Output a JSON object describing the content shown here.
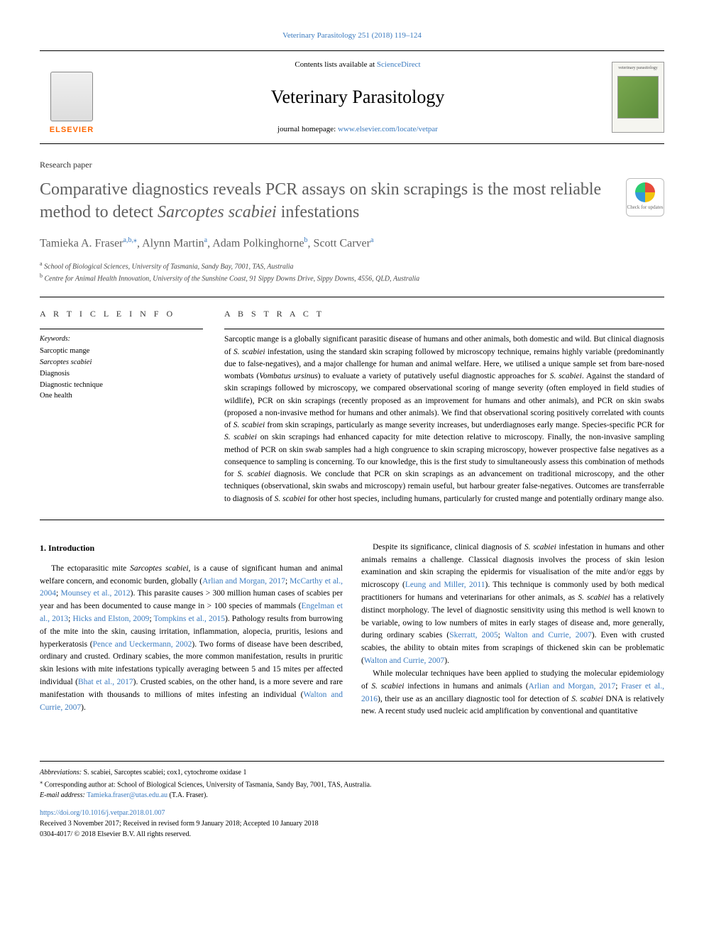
{
  "journal_ref": {
    "text": "Veterinary Parasitology 251 (2018) 119–124",
    "url": "#"
  },
  "masthead": {
    "contents_label": "Contents lists available at ",
    "contents_link": "ScienceDirect",
    "journal_title": "Veterinary Parasitology",
    "homepage_label": "journal homepage: ",
    "homepage_link": "www.elsevier.com/locate/vetpar",
    "elsevier_text": "ELSEVIER",
    "cover_title": "veterinary parasitology"
  },
  "article": {
    "type": "Research paper",
    "title_pre": "Comparative diagnostics reveals PCR assays on skin scrapings is the most reliable method to detect ",
    "title_italic": "Sarcoptes scabiei",
    "title_post": " infestations",
    "crossmark_label": "Check for updates"
  },
  "authors": {
    "a1_name": "Tamieka A. Fraser",
    "a1_aff": "a,b,",
    "a1_corr": "⁎",
    "a2_name": "Alynn Martin",
    "a2_aff": "a",
    "a3_name": "Adam Polkinghorne",
    "a3_aff": "b",
    "a4_name": "Scott Carver",
    "a4_aff": "a"
  },
  "affiliations": {
    "a": "a School of Biological Sciences, University of Tasmania, Sandy Bay, 7001, TAS, Australia",
    "b": "b Centre for Animal Health Innovation, University of the Sunshine Coast, 91 Sippy Downs Drive, Sippy Downs, 4556, QLD, Australia"
  },
  "info": {
    "heading": "A R T I C L E  I N F O",
    "keywords_label": "Keywords:",
    "keywords": [
      "Sarcoptic mange",
      "Sarcoptes scabiei",
      "Diagnosis",
      "Diagnostic technique",
      "One health"
    ]
  },
  "abstract": {
    "heading": "A B S T R A C T",
    "text": "Sarcoptic mange is a globally significant parasitic disease of humans and other animals, both domestic and wild. But clinical diagnosis of S. scabiei infestation, using the standard skin scraping followed by microscopy technique, remains highly variable (predominantly due to false-negatives), and a major challenge for human and animal welfare. Here, we utilised a unique sample set from bare-nosed wombats (Vombatus ursinus) to evaluate a variety of putatively useful diagnostic approaches for S. scabiei. Against the standard of skin scrapings followed by microscopy, we compared observational scoring of mange severity (often employed in field studies of wildlife), PCR on skin scrapings (recently proposed as an improvement for humans and other animals), and PCR on skin swabs (proposed a non-invasive method for humans and other animals). We find that observational scoring positively correlated with counts of S. scabiei from skin scrapings, particularly as mange severity increases, but underdiagnoses early mange. Species-specific PCR for S. scabiei on skin scrapings had enhanced capacity for mite detection relative to microscopy. Finally, the non-invasive sampling method of PCR on skin swab samples had a high congruence to skin scraping microscopy, however prospective false negatives as a consequence to sampling is concerning. To our knowledge, this is the first study to simultaneously assess this combination of methods for S. scabiei diagnosis. We conclude that PCR on skin scrapings as an advancement on traditional microscopy, and the other techniques (observational, skin swabs and microscopy) remain useful, but harbour greater false-negatives. Outcomes are transferrable to diagnosis of S. scabiei for other host species, including humans, particularly for crusted mange and potentially ordinary mange also."
  },
  "body": {
    "intro_heading": "1. Introduction",
    "p1": "The ectoparasitic mite Sarcoptes scabiei, is a cause of significant human and animal welfare concern, and economic burden, globally (Arlian and Morgan, 2017; McCarthy et al., 2004; Mounsey et al., 2012). This parasite causes > 300 million human cases of scabies per year and has been documented to cause mange in > 100 species of mammals (Engelman et al., 2013; Hicks and Elston, 2009; Tompkins et al., 2015). Pathology results from burrowing of the mite into the skin, causing irritation, inflammation, alopecia, pruritis, lesions and hyperkeratosis (Pence and Ueckermann, 2002). Two forms of disease have been described, ordinary and crusted. Ordinary scabies, the more common manifestation, results in pruritic skin lesions with mite infestations typically averaging between 5 and 15 mites per affected individual (Bhat et al., 2017). Crusted scabies, on the other hand, is a more severe and rare manifestation with thousands to millions of mites infesting an individual (Walton and Currie, 2007).",
    "p2": "Despite its significance, clinical diagnosis of S. scabiei infestation in humans and other animals remains a challenge. Classical diagnosis involves the process of skin lesion examination and skin scraping the epidermis for visualisation of the mite and/or eggs by microscopy (Leung and Miller, 2011). This technique is commonly used by both medical practitioners for humans and veterinarians for other animals, as S. scabiei has a relatively distinct morphology. The level of diagnostic sensitivity using this method is well known to be variable, owing to low numbers of mites in early stages of disease and, more generally, during ordinary scabies (Skerratt, 2005; Walton and Currie, 2007). Even with crusted scabies, the ability to obtain mites from scrapings of thickened skin can be problematic (Walton and Currie, 2007).",
    "p3": "While molecular techniques have been applied to studying the molecular epidemiology of S. scabiei infections in humans and animals (Arlian and Morgan, 2017; Fraser et al., 2016), their use as an ancillary diagnostic tool for detection of S. scabiei DNA is relatively new. A recent study used nucleic acid amplification by conventional and quantitative"
  },
  "footer": {
    "abbrev_label": "Abbreviations:",
    "abbrev_text": " S. scabiei, Sarcoptes scabiei; cox1, cytochrome oxidase 1",
    "corr_symbol": "⁎",
    "corr_text": " Corresponding author at: School of Biological Sciences, University of Tasmania, Sandy Bay, 7001, TAS, Australia.",
    "email_label": "E-mail address: ",
    "email": "Tamieka.fraser@utas.edu.au",
    "email_post": " (T.A. Fraser).",
    "doi": "https://doi.org/10.1016/j.vetpar.2018.01.007",
    "received": "Received 3 November 2017; Received in revised form 9 January 2018; Accepted 10 January 2018",
    "copyright": "0304-4017/ © 2018 Elsevier B.V. All rights reserved."
  },
  "colors": {
    "link": "#3a7abf",
    "title_grey": "#5f5f5f",
    "elsevier_orange": "#ff6600"
  }
}
